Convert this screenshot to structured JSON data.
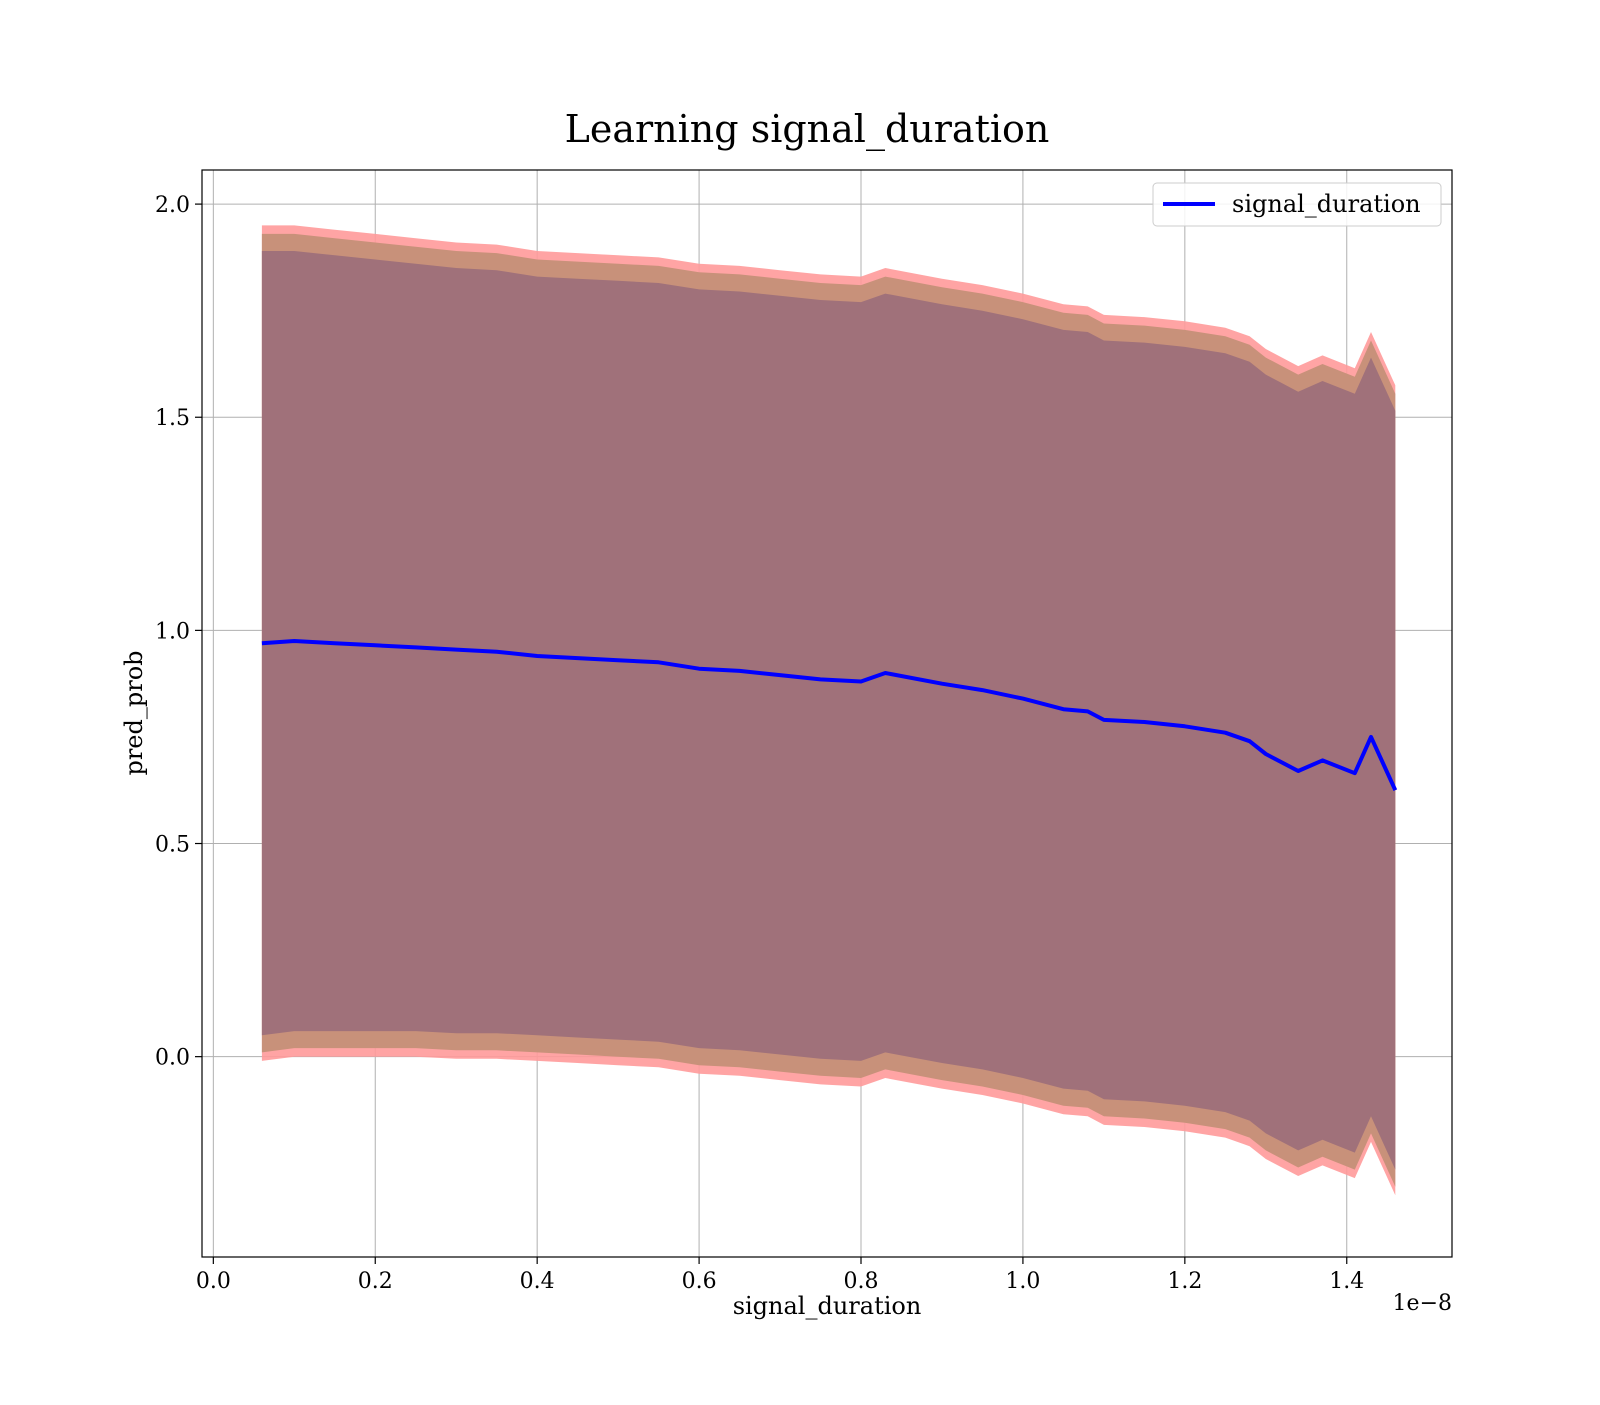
{
  "chart_data": {
    "type": "line",
    "title": "Learning signal_duration",
    "xlabel": "signal_duration",
    "ylabel": "pred_prob",
    "x_offset_label": "1e−8",
    "xlim": [
      -0.014,
      1.53
    ],
    "ylim": [
      -0.47,
      2.08
    ],
    "grid": true,
    "legend_position": "top-right",
    "x_ticks": [
      0.0,
      0.2,
      0.4,
      0.6,
      0.8,
      1.0,
      1.2,
      1.4
    ],
    "x_tick_labels": [
      "0.0",
      "0.2",
      "0.4",
      "0.6",
      "0.8",
      "1.0",
      "1.2",
      "1.4"
    ],
    "y_ticks": [
      0.0,
      0.5,
      1.0,
      1.5,
      2.0
    ],
    "y_tick_labels": [
      "0.0",
      "0.5",
      "1.0",
      "1.5",
      "2.0"
    ],
    "colors": {
      "line": "#0000ff",
      "band_outer": "#ff9a9a",
      "band_middle": "#c8917a",
      "band_inner": "#a0717a",
      "grid": "#b0b0b0"
    },
    "series": [
      {
        "name": "signal_duration",
        "x": [
          0.06,
          0.1,
          0.15,
          0.2,
          0.25,
          0.3,
          0.35,
          0.4,
          0.45,
          0.5,
          0.55,
          0.6,
          0.65,
          0.7,
          0.75,
          0.8,
          0.83,
          0.9,
          0.95,
          1.0,
          1.05,
          1.08,
          1.1,
          1.15,
          1.2,
          1.25,
          1.28,
          1.3,
          1.34,
          1.37,
          1.41,
          1.43,
          1.46
        ],
        "y": [
          0.97,
          0.975,
          0.97,
          0.965,
          0.96,
          0.955,
          0.95,
          0.94,
          0.935,
          0.93,
          0.925,
          0.91,
          0.905,
          0.895,
          0.885,
          0.88,
          0.9,
          0.875,
          0.86,
          0.84,
          0.815,
          0.81,
          0.79,
          0.785,
          0.775,
          0.76,
          0.74,
          0.71,
          0.67,
          0.695,
          0.665,
          0.75,
          0.625
        ]
      }
    ],
    "bands": [
      {
        "x": [
          0.06,
          0.1,
          0.15,
          0.2,
          0.25,
          0.3,
          0.35,
          0.4,
          0.45,
          0.5,
          0.55,
          0.6,
          0.65,
          0.7,
          0.75,
          0.8,
          0.83,
          0.9,
          0.95,
          1.0,
          1.05,
          1.08,
          1.1,
          1.15,
          1.2,
          1.25,
          1.28,
          1.3,
          1.34,
          1.37,
          1.41,
          1.43,
          1.46
        ],
        "upper": [
          1.95,
          1.95,
          1.94,
          1.93,
          1.92,
          1.91,
          1.905,
          1.89,
          1.885,
          1.88,
          1.875,
          1.86,
          1.855,
          1.845,
          1.835,
          1.83,
          1.85,
          1.825,
          1.81,
          1.79,
          1.765,
          1.76,
          1.74,
          1.735,
          1.725,
          1.71,
          1.69,
          1.66,
          1.62,
          1.645,
          1.615,
          1.7,
          1.575
        ],
        "lower": [
          -0.01,
          0.0,
          0.0,
          0.0,
          0.0,
          -0.005,
          -0.005,
          -0.01,
          -0.015,
          -0.02,
          -0.025,
          -0.04,
          -0.045,
          -0.055,
          -0.065,
          -0.07,
          -0.05,
          -0.075,
          -0.09,
          -0.11,
          -0.135,
          -0.14,
          -0.16,
          -0.165,
          -0.175,
          -0.19,
          -0.21,
          -0.24,
          -0.28,
          -0.255,
          -0.285,
          -0.2,
          -0.325
        ]
      }
    ]
  }
}
